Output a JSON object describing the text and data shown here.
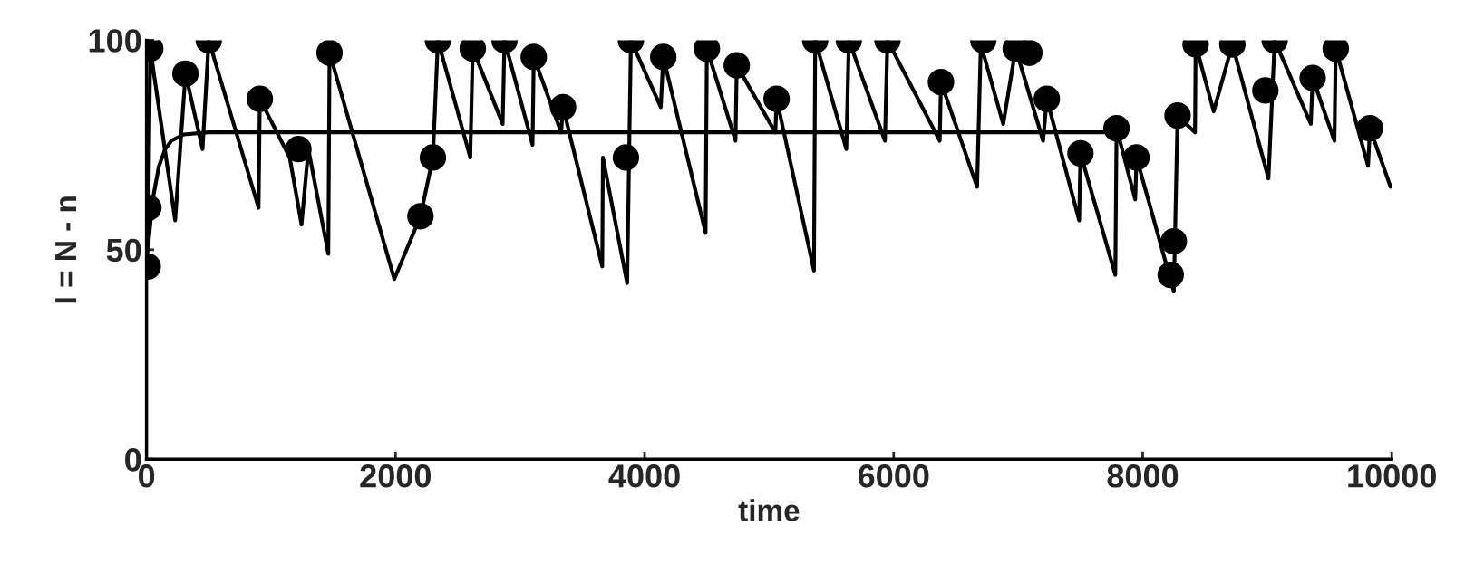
{
  "chart_data": {
    "type": "line",
    "xlabel": "time",
    "ylabel": "I = N - n",
    "xlim": [
      0,
      10000
    ],
    "xticks": [
      0,
      2000,
      4000,
      6000,
      8000,
      10000
    ],
    "ylim": [
      0,
      100
    ],
    "yticks": [
      0,
      50,
      100
    ],
    "grid": false,
    "legend": false,
    "series": [
      {
        "color": "#000000",
        "x": [
          0,
          15,
          30,
          230,
          313,
          450,
          500,
          900,
          910,
          1150,
          1245,
          1300,
          1460,
          1470,
          1990,
          2200,
          2300,
          2340,
          2600,
          2620,
          2860,
          2875,
          3100,
          3110,
          3330,
          3345,
          3660,
          3665,
          3860,
          3890,
          4130,
          4150,
          4490,
          4500,
          4730,
          4740,
          5050,
          5060,
          5360,
          5370,
          5620,
          5640,
          5930,
          5950,
          6370,
          6380,
          6670,
          6700,
          6880,
          6980,
          7200,
          7230,
          7490,
          7500,
          7780,
          7790,
          7940,
          7950,
          8250,
          8280,
          8420,
          8425,
          8570,
          8720,
          9010,
          9060,
          9350,
          9365,
          9540,
          9550,
          9810,
          9825,
          9990
        ],
        "values": [
          47,
          60,
          98,
          57,
          92,
          74,
          100,
          60,
          86,
          72,
          56,
          74,
          49,
          97,
          43,
          58,
          72,
          100,
          72,
          98,
          80,
          100,
          75,
          96,
          78,
          84,
          46,
          72,
          42,
          100,
          84,
          96,
          54,
          98,
          76,
          94,
          78,
          86,
          45,
          100,
          74,
          100,
          76,
          100,
          76,
          90,
          65,
          99,
          80,
          98,
          76,
          86,
          57,
          73,
          44,
          79,
          62,
          72,
          40,
          82,
          78,
          99,
          83,
          99,
          67,
          100,
          80,
          91,
          76,
          98,
          70,
          79,
          65
        ]
      },
      {
        "color": "#000000",
        "x": [
          0,
          50,
          100,
          150,
          200,
          300,
          500,
          7800
        ],
        "values": [
          47,
          62,
          70,
          74,
          76,
          77.5,
          78,
          78
        ]
      },
      {
        "type": "scatter",
        "marker": "circle",
        "color": "#000000",
        "x": [
          10,
          15,
          30,
          313,
          500,
          910,
          1220,
          1470,
          2200,
          2300,
          2340,
          2620,
          2875,
          3110,
          3345,
          3850,
          3890,
          4150,
          4500,
          4740,
          5060,
          5370,
          5640,
          5950,
          6380,
          6720,
          6980,
          7090,
          7230,
          7500,
          7790,
          7950,
          8225,
          8250,
          8280,
          8425,
          8720,
          8985,
          9060,
          9365,
          9550,
          9825
        ],
        "values": [
          46,
          60,
          98,
          92,
          100,
          86,
          74,
          97,
          58,
          72,
          100,
          98,
          100,
          96,
          84,
          72,
          100,
          96,
          98,
          94,
          86,
          100,
          100,
          100,
          90,
          100,
          98,
          97,
          86,
          73,
          79,
          72,
          44,
          52,
          82,
          99,
          99,
          88,
          100,
          91,
          98,
          79
        ]
      }
    ]
  }
}
